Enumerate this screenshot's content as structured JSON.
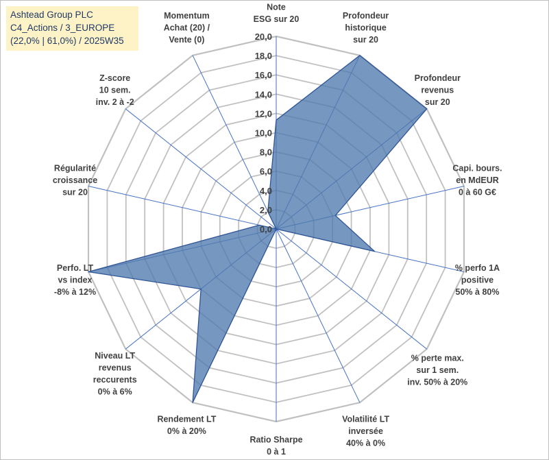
{
  "info": {
    "line1": "Ashtead Group PLC",
    "line2": "C4_Actions / 3_EUROPE",
    "line3": "(22,0% | 61,0%) / 2025W35"
  },
  "colors": {
    "fill": "#4f7aad",
    "series_line": "#2f5597",
    "spoke": "#4472c4",
    "grid": "#c0c0c0"
  },
  "chart_data": {
    "type": "radar",
    "rmin": 0,
    "rmax": 20,
    "tick_step": 2,
    "tick_labels": [
      "0,0",
      "2,0",
      "4,0",
      "6,0",
      "8,0",
      "10,0",
      "12,0",
      "14,0",
      "16,0",
      "18,0",
      "20,0"
    ],
    "grid": true,
    "categories": [
      [
        "Note",
        "ESG sur 20"
      ],
      [
        "Profondeur",
        "historique",
        "sur 20"
      ],
      [
        "Profondeur",
        "revenus",
        "sur 20"
      ],
      [
        "Capi. bours.",
        "en MdEUR",
        "0 à 60 G€"
      ],
      [
        "% perfo 1A",
        "positive",
        "50% à 80%"
      ],
      [
        "% perte max.",
        "sur 1 sem.",
        "inv. 50% à 20%"
      ],
      [
        "Volatilité LT",
        "inversée",
        "40% à 0%"
      ],
      [
        "Ratio Sharpe",
        "0 à 1"
      ],
      [
        "Rendement LT",
        "0% à 20%"
      ],
      [
        "Niveau LT",
        "revenus",
        "reccurents",
        "0% à 6%"
      ],
      [
        "Perfo. LT",
        "vs index",
        "-8% à 12%"
      ],
      [
        "Régularité",
        "croissance",
        "sur 20"
      ],
      [
        "Z-score",
        "10 sem.",
        "inv. 2 à -2"
      ],
      [
        "Momentum",
        "Achat (20) /",
        "Vente (0)"
      ]
    ],
    "values": [
      11.3,
      20.0,
      20.0,
      6.3,
      10.5,
      0.0,
      0.0,
      0.0,
      20.0,
      10.0,
      20.0,
      1.8,
      0.0,
      2.0
    ]
  }
}
